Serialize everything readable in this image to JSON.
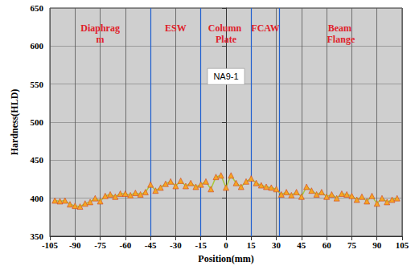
{
  "chart_data": {
    "type": "line",
    "x_label": "Position(mm)",
    "y_label": "Hardness(HLD)",
    "xlim": [
      -105,
      105
    ],
    "xticks": [
      -105,
      -90,
      -75,
      -60,
      -45,
      -30,
      -15,
      0,
      15,
      30,
      45,
      60,
      75,
      90,
      105
    ],
    "ylim": [
      350,
      650
    ],
    "yticks": [
      350,
      400,
      450,
      500,
      550,
      600,
      650
    ],
    "grid": true,
    "marker": "triangle",
    "color": "#f5a623",
    "line_color": "#a8c83a",
    "x": [
      -102,
      -99,
      -96,
      -93,
      -90,
      -87,
      -84,
      -81,
      -78,
      -75,
      -72,
      -69,
      -66,
      -63,
      -60,
      -57,
      -54,
      -51,
      -48,
      -45,
      -42,
      -39,
      -36,
      -33,
      -30,
      -27,
      -24,
      -21,
      -18,
      -15,
      -12,
      -9,
      -6,
      -3,
      0,
      3,
      6,
      9,
      12,
      15,
      18,
      21,
      24,
      27,
      30,
      33,
      36,
      39,
      42,
      45,
      48,
      51,
      54,
      57,
      60,
      63,
      66,
      69,
      72,
      75,
      78,
      81,
      84,
      87,
      90,
      93,
      96,
      99,
      102
    ],
    "values": [
      397,
      396,
      397,
      392,
      390,
      389,
      393,
      395,
      400,
      396,
      403,
      405,
      402,
      406,
      406,
      404,
      407,
      405,
      408,
      418,
      410,
      414,
      419,
      422,
      416,
      423,
      416,
      420,
      415,
      418,
      422,
      412,
      428,
      430,
      414,
      430,
      420,
      415,
      422,
      426,
      420,
      417,
      415,
      414,
      412,
      405,
      408,
      404,
      408,
      402,
      415,
      410,
      405,
      408,
      402,
      405,
      400,
      406,
      405,
      403,
      398,
      402,
      396,
      403,
      393,
      400,
      395,
      398,
      400
    ],
    "regions": [
      {
        "label": "Diaphragm",
        "from": -105,
        "to": -45
      },
      {
        "label": "ESW",
        "from": -45,
        "to": -15
      },
      {
        "label": "Column Plate",
        "from": -15,
        "to": 15
      },
      {
        "label": "FCAW",
        "from": 15,
        "to": 32
      },
      {
        "label": "Beam Flange",
        "from": 32,
        "to": 105
      }
    ],
    "annotations": [
      {
        "text": "NA9-1",
        "x": 0,
        "y": 560
      }
    ]
  }
}
